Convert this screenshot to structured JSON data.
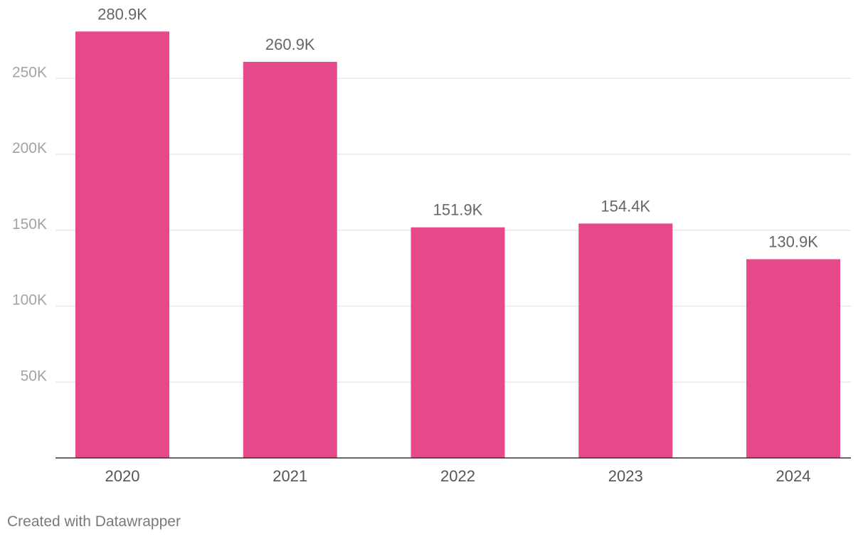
{
  "chart_data": {
    "type": "bar",
    "categories": [
      "2020",
      "2021",
      "2022",
      "2023",
      "2024"
    ],
    "values": [
      280900,
      260900,
      151900,
      154400,
      130900
    ],
    "value_labels": [
      "280.9K",
      "260.9K",
      "151.9K",
      "154.4K",
      "130.9K"
    ],
    "y_ticks": [
      50000,
      100000,
      150000,
      200000,
      250000
    ],
    "y_tick_labels": [
      "50K",
      "100K",
      "150K",
      "200K",
      "250K"
    ],
    "ylim": [
      0,
      300000
    ],
    "grid": true,
    "bar_color": "#e5498a",
    "title": "",
    "xlabel": "",
    "ylabel": ""
  },
  "footer": {
    "credit": "Created with Datawrapper"
  }
}
